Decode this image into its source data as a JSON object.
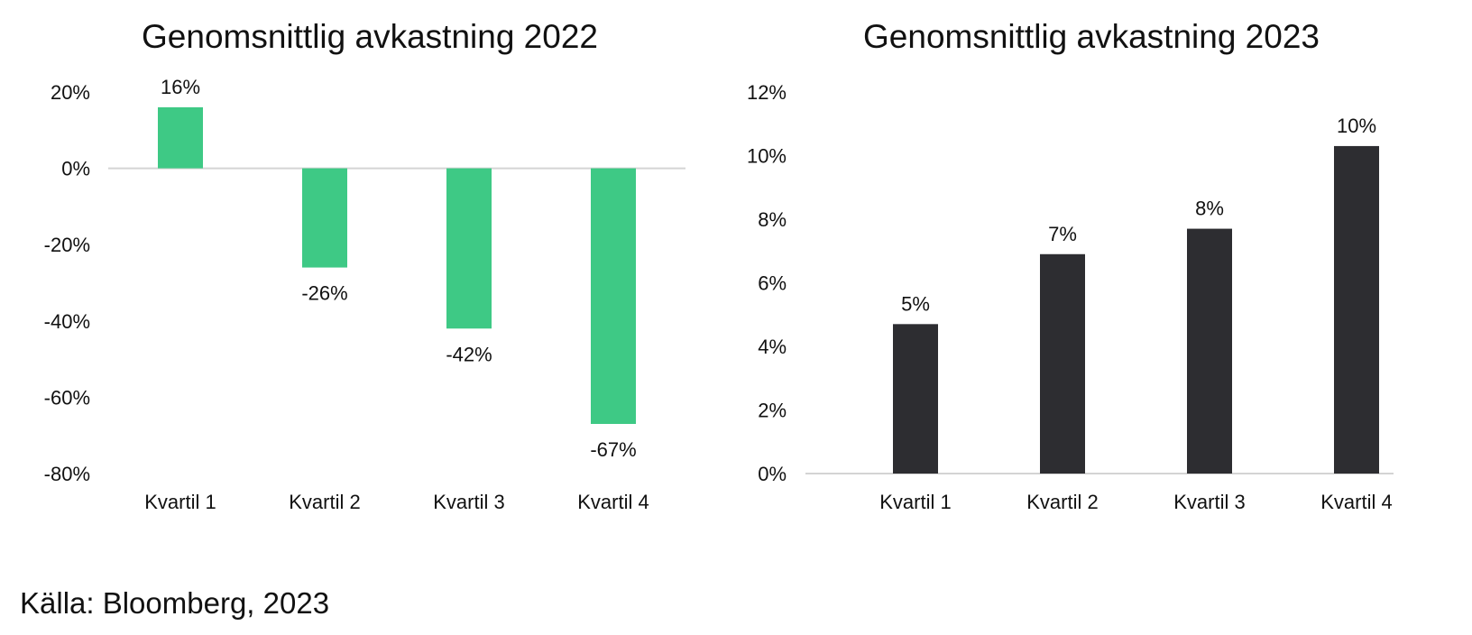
{
  "chart_data": [
    {
      "type": "bar",
      "title": "Genomsnittlig avkastning 2022",
      "categories": [
        "Kvartil 1",
        "Kvartil 2",
        "Kvartil 3",
        "Kvartil 4"
      ],
      "values": [
        16,
        -26,
        -42,
        -67
      ],
      "data_labels": [
        "16%",
        "-26%",
        "-42%",
        "-67%"
      ],
      "yticks": [
        "20%",
        "0%",
        "-20%",
        "-40%",
        "-60%",
        "-80%"
      ],
      "ylim": [
        -80,
        20
      ],
      "unit": "%",
      "color": "#3ec985",
      "grid": false
    },
    {
      "type": "bar",
      "title": "Genomsnittlig avkastning 2023",
      "categories": [
        "Kvartil 1",
        "Kvartil 2",
        "Kvartil 3",
        "Kvartil 4"
      ],
      "values": [
        4.7,
        6.9,
        7.7,
        10.3
      ],
      "data_labels": [
        "5%",
        "7%",
        "8%",
        "10%"
      ],
      "yticks": [
        "12%",
        "10%",
        "8%",
        "6%",
        "4%",
        "2%",
        "0%"
      ],
      "ylim": [
        0,
        12
      ],
      "unit": "%",
      "color": "#2d2d31",
      "grid": false
    }
  ],
  "source": "Källa: Bloomberg, 2023",
  "colors": {
    "axis_line": "#d4d4d4",
    "text": "#111111"
  }
}
